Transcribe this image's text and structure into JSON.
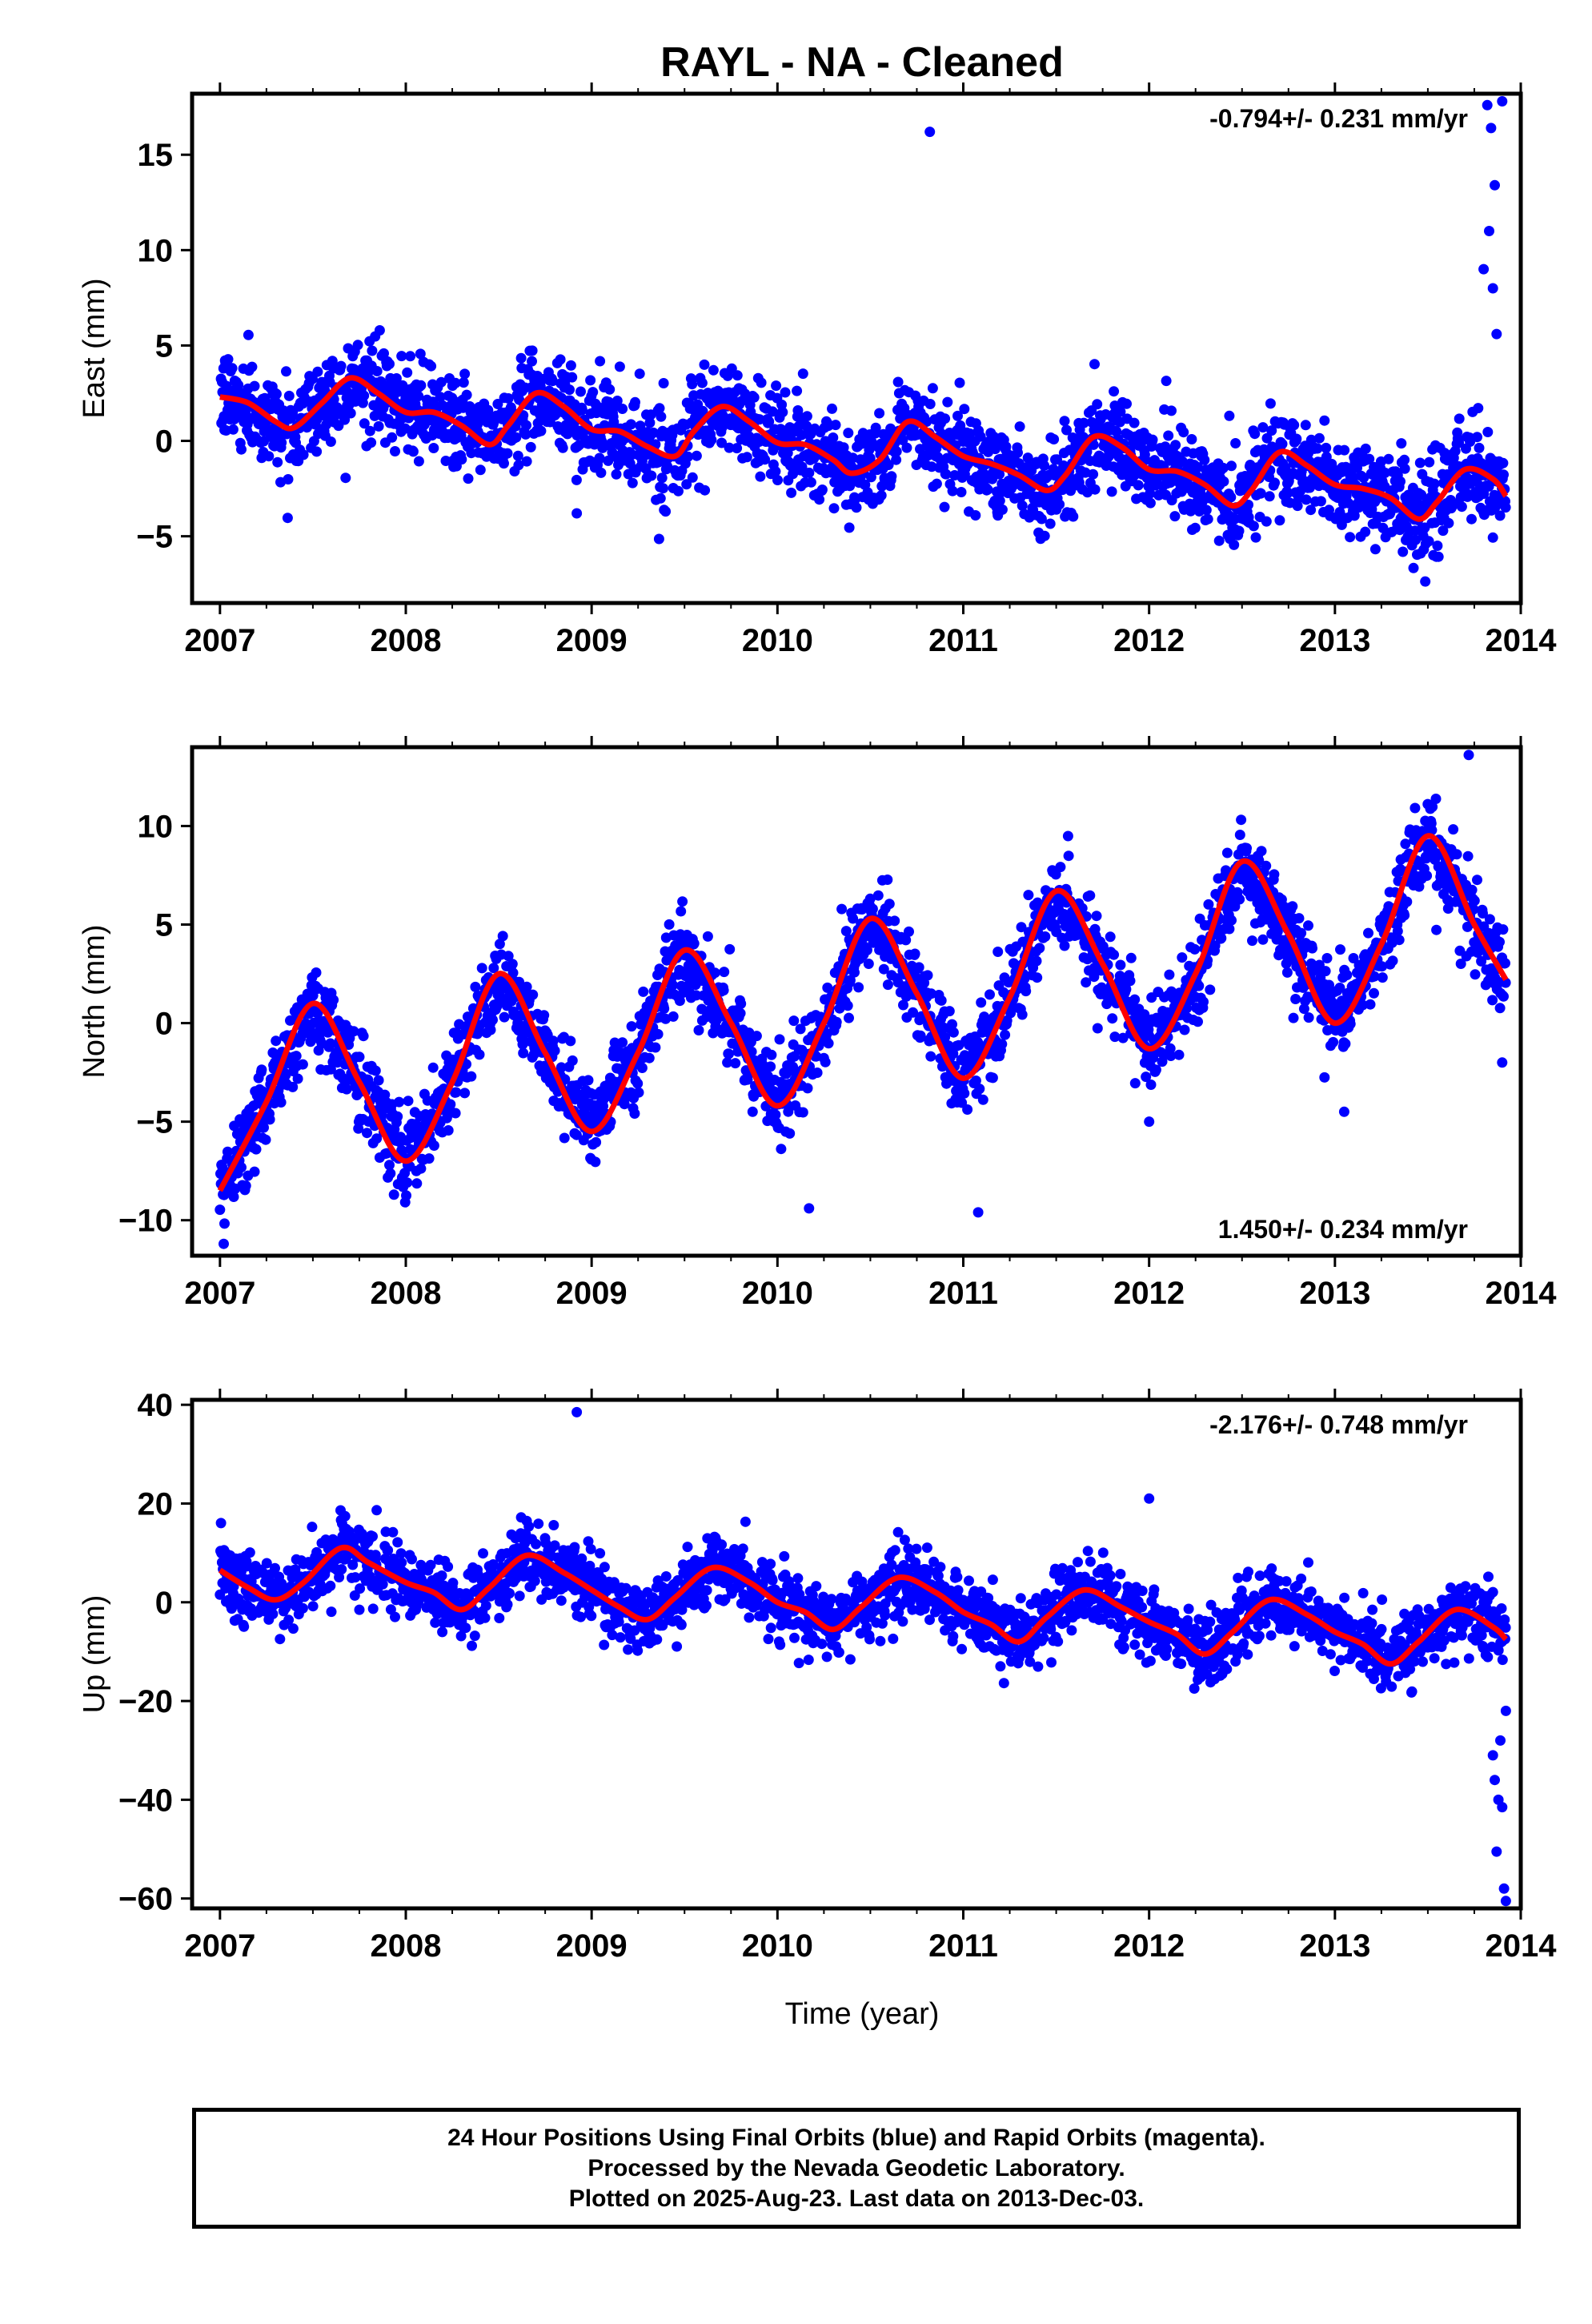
{
  "title": "RAYL  - NA - Cleaned",
  "xlabel": "Time (year)",
  "footer": {
    "line1": "24 Hour Positions Using Final Orbits (blue) and Rapid Orbits (magenta).",
    "line2": "Processed by the Nevada Geodetic Laboratory.",
    "line3": "Plotted on 2025-Aug-23. Last data on 2013-Dec-03."
  },
  "colors": {
    "points": "#0000ff",
    "fit": "#ff0000",
    "axes": "#000000"
  },
  "chart_data": [
    {
      "type": "scatter",
      "ylabel": "East (mm)",
      "rate_label": "-0.794+/- 0.231 mm/yr",
      "rate_position": "top-right",
      "xlim": [
        2006.85,
        2014.0
      ],
      "ylim": [
        -8.5,
        18.2
      ],
      "x_ticks": [
        2007,
        2008,
        2009,
        2010,
        2011,
        2012,
        2013,
        2014
      ],
      "y_ticks": [
        -5,
        0,
        5,
        10,
        15
      ],
      "grid": false,
      "fit_curve": {
        "x": [
          2007.0,
          2007.15,
          2007.3,
          2007.4,
          2007.55,
          2007.7,
          2007.85,
          2008.0,
          2008.15,
          2008.3,
          2008.45,
          2008.55,
          2008.7,
          2008.85,
          2009.0,
          2009.15,
          2009.3,
          2009.45,
          2009.55,
          2009.7,
          2009.85,
          2010.0,
          2010.15,
          2010.3,
          2010.4,
          2010.55,
          2010.7,
          2010.85,
          2011.0,
          2011.15,
          2011.3,
          2011.45,
          2011.55,
          2011.7,
          2011.85,
          2012.0,
          2012.15,
          2012.3,
          2012.45,
          2012.55,
          2012.7,
          2012.85,
          2013.0,
          2013.15,
          2013.3,
          2013.45,
          2013.55,
          2013.7,
          2013.85,
          2013.92
        ],
        "y": [
          2.3,
          2.0,
          1.0,
          0.7,
          2.0,
          3.3,
          2.5,
          1.5,
          1.5,
          0.8,
          -0.2,
          0.8,
          2.5,
          1.8,
          0.6,
          0.5,
          -0.3,
          -0.8,
          0.5,
          1.8,
          1.0,
          -0.1,
          -0.2,
          -1.0,
          -1.7,
          -1.0,
          1.0,
          0.2,
          -0.8,
          -1.2,
          -1.8,
          -2.6,
          -1.8,
          0.2,
          -0.3,
          -1.5,
          -1.6,
          -2.3,
          -3.4,
          -2.6,
          -0.6,
          -1.3,
          -2.3,
          -2.5,
          -3.0,
          -4.1,
          -3.2,
          -1.5,
          -2.0,
          -2.9
        ]
      },
      "trend": {
        "slope": -0.794,
        "start_x": 2007.0,
        "start_y": 2.2
      },
      "seasonal": {
        "amplitude": 1.4,
        "phase_year": 0.68
      },
      "noise_sigma": 1.2,
      "outliers": [
        {
          "x": 2010.82,
          "y": 16.2
        },
        {
          "x": 2013.82,
          "y": 17.6
        },
        {
          "x": 2013.84,
          "y": 16.4
        },
        {
          "x": 2013.86,
          "y": 13.4
        },
        {
          "x": 2013.83,
          "y": 11.0
        },
        {
          "x": 2013.8,
          "y": 9.0
        },
        {
          "x": 2013.85,
          "y": 8.0
        },
        {
          "x": 2013.87,
          "y": 5.6
        },
        {
          "x": 2013.9,
          "y": 17.8
        },
        {
          "x": 2008.92,
          "y": -3.8
        }
      ]
    },
    {
      "type": "scatter",
      "ylabel": "North (mm)",
      "rate_label": "1.450+/- 0.234 mm/yr",
      "rate_position": "bottom-right",
      "xlim": [
        2006.85,
        2014.0
      ],
      "ylim": [
        -11.8,
        14.0
      ],
      "x_ticks": [
        2007,
        2008,
        2009,
        2010,
        2011,
        2012,
        2013,
        2014
      ],
      "y_ticks": [
        -10,
        -5,
        0,
        5,
        10
      ],
      "grid": false,
      "fit_curve": {
        "x": [
          2007.0,
          2007.25,
          2007.5,
          2007.75,
          2008.0,
          2008.25,
          2008.5,
          2008.75,
          2009.0,
          2009.25,
          2009.5,
          2009.75,
          2010.0,
          2010.25,
          2010.5,
          2010.75,
          2011.0,
          2011.25,
          2011.5,
          2011.75,
          2012.0,
          2012.25,
          2012.5,
          2012.75,
          2013.0,
          2013.25,
          2013.5,
          2013.75,
          2013.92
        ],
        "y": [
          -8.5,
          -4.0,
          1.0,
          -3.0,
          -7.0,
          -3.0,
          2.5,
          -1.5,
          -5.5,
          -1.5,
          3.7,
          0.0,
          -4.2,
          0.0,
          5.3,
          1.5,
          -2.8,
          1.3,
          6.7,
          3.0,
          -1.3,
          2.5,
          8.2,
          4.5,
          0.0,
          4.0,
          9.5,
          5.0,
          2.2
        ]
      },
      "trend": {
        "slope": 1.45,
        "start_x": 2007.0,
        "start_y": -3.5
      },
      "seasonal": {
        "amplitude": 5.0,
        "phase_year": 0.5
      },
      "noise_sigma": 1.1,
      "outliers": [
        {
          "x": 2007.02,
          "y": -11.2
        },
        {
          "x": 2010.17,
          "y": -9.4
        },
        {
          "x": 2011.08,
          "y": -9.6
        },
        {
          "x": 2012.0,
          "y": -5.0
        },
        {
          "x": 2013.05,
          "y": -4.5
        },
        {
          "x": 2013.72,
          "y": 13.6
        },
        {
          "x": 2013.9,
          "y": -2.0
        }
      ]
    },
    {
      "type": "scatter",
      "ylabel": "Up (mm)",
      "rate_label": "-2.176+/- 0.748 mm/yr",
      "rate_position": "top-right",
      "xlim": [
        2006.85,
        2014.0
      ],
      "ylim": [
        -62,
        41
      ],
      "x_ticks": [
        2007,
        2008,
        2009,
        2010,
        2011,
        2012,
        2013,
        2014
      ],
      "y_ticks": [
        -60,
        -40,
        -20,
        0,
        20,
        40
      ],
      "grid": false,
      "fit_curve": {
        "x": [
          2007.0,
          2007.15,
          2007.3,
          2007.45,
          2007.65,
          2007.8,
          2008.0,
          2008.15,
          2008.3,
          2008.45,
          2008.65,
          2008.85,
          2009.0,
          2009.15,
          2009.3,
          2009.45,
          2009.65,
          2009.85,
          2010.0,
          2010.15,
          2010.3,
          2010.45,
          2010.65,
          2010.85,
          2011.0,
          2011.15,
          2011.3,
          2011.45,
          2011.65,
          2011.85,
          2012.0,
          2012.15,
          2012.3,
          2012.45,
          2012.65,
          2012.85,
          2013.0,
          2013.15,
          2013.3,
          2013.45,
          2013.65,
          2013.85,
          2013.92
        ],
        "y": [
          6.5,
          3.0,
          0.5,
          4.0,
          11.0,
          8.0,
          4.0,
          2.0,
          -1.5,
          3.0,
          9.5,
          6.0,
          2.5,
          -1.0,
          -3.5,
          1.0,
          7.0,
          4.0,
          0.0,
          -2.0,
          -5.5,
          -1.0,
          5.0,
          2.0,
          -2.0,
          -4.5,
          -8.0,
          -3.0,
          2.5,
          -1.0,
          -4.0,
          -6.5,
          -10.5,
          -6.0,
          0.5,
          -2.5,
          -6.0,
          -8.5,
          -12.5,
          -8.0,
          -1.5,
          -5.0,
          -7.5
        ]
      },
      "trend": {
        "slope": -2.176,
        "start_x": 2007.0,
        "start_y": 2.5
      },
      "seasonal": {
        "amplitude": 5.0,
        "phase_year": 0.63
      },
      "noise_sigma": 3.5,
      "outliers": [
        {
          "x": 2008.92,
          "y": 38.5
        },
        {
          "x": 2012.0,
          "y": 21.0
        },
        {
          "x": 2013.85,
          "y": -31.0
        },
        {
          "x": 2013.88,
          "y": -40.0
        },
        {
          "x": 2013.9,
          "y": -41.5
        },
        {
          "x": 2013.87,
          "y": -50.5
        },
        {
          "x": 2013.91,
          "y": -58.0
        },
        {
          "x": 2013.92,
          "y": -60.5
        },
        {
          "x": 2013.86,
          "y": -36.0
        },
        {
          "x": 2013.89,
          "y": -28.0
        },
        {
          "x": 2013.92,
          "y": -22.0
        }
      ]
    }
  ]
}
